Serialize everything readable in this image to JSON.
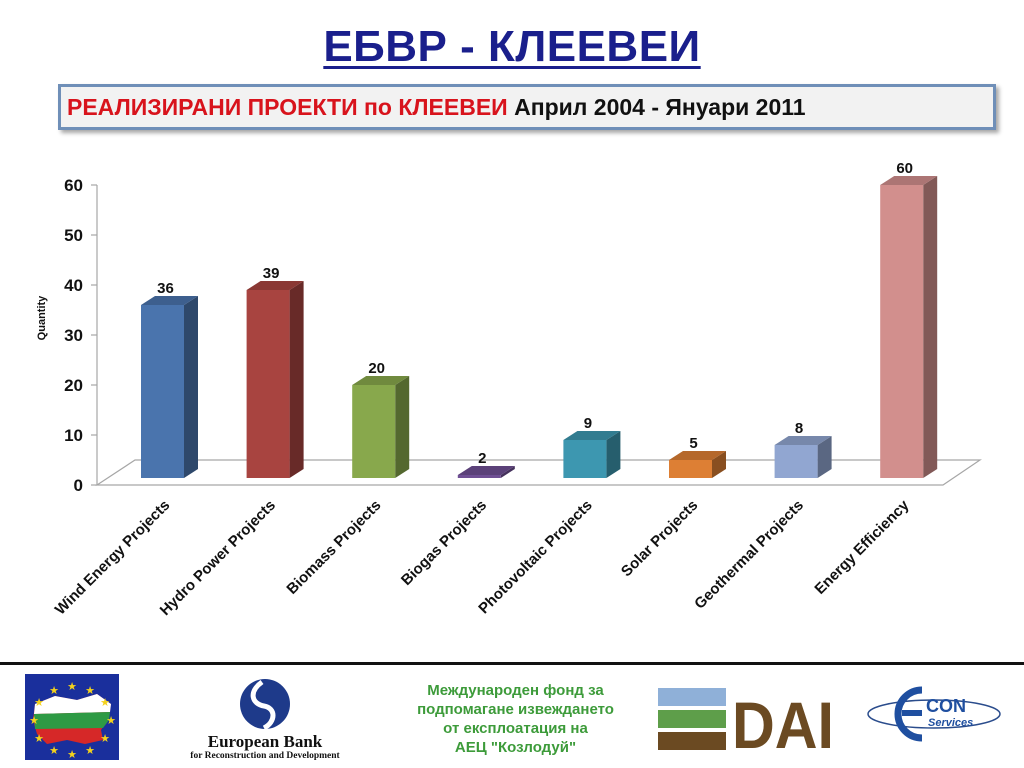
{
  "header": {
    "title": "ЕБВР - КЛЕЕВЕИ",
    "subtitle_red": "РЕАЛИЗИРАНИ ПРОЕКТИ по КЛЕЕВЕИ",
    "subtitle_black": "Април 2004 - Януари 2011"
  },
  "chart_data": {
    "type": "bar",
    "categories": [
      "Wind Energy Projects",
      "Hydro Power Projects",
      "Biomass Projects",
      "Biogas Projects",
      "Photovoltaic Projects",
      "Solar Projects",
      "Geothermal Projects",
      "Energy Efficiency"
    ],
    "values": [
      36,
      39,
      20,
      2,
      9,
      5,
      8,
      60
    ],
    "labels": [
      "36",
      "39",
      "20",
      "2",
      "9",
      "5",
      "8",
      "60"
    ],
    "ylabel": "Quantity",
    "ylim": [
      0,
      60
    ],
    "yticks": [
      "0",
      "10",
      "20",
      "30",
      "40",
      "50",
      "60"
    ],
    "colors": [
      "#4a74ad",
      "#a84440",
      "#88a84c",
      "#6f4f94",
      "#3d97b0",
      "#dd7f34",
      "#91a6d1",
      "#d28f8d"
    ],
    "legend": "none",
    "grid": false
  },
  "footer": {
    "ebrd_name": "European Bank",
    "ebrd_tagline": "for Reconstruction and Development",
    "fund_lines": [
      "Международен фонд за",
      "подпомагане извеждането",
      "от експлоатация на",
      "АЕЦ \"Козлодуй\""
    ],
    "dai_text": "DAI",
    "encon_text": "CON",
    "encon_sub": "Services"
  }
}
